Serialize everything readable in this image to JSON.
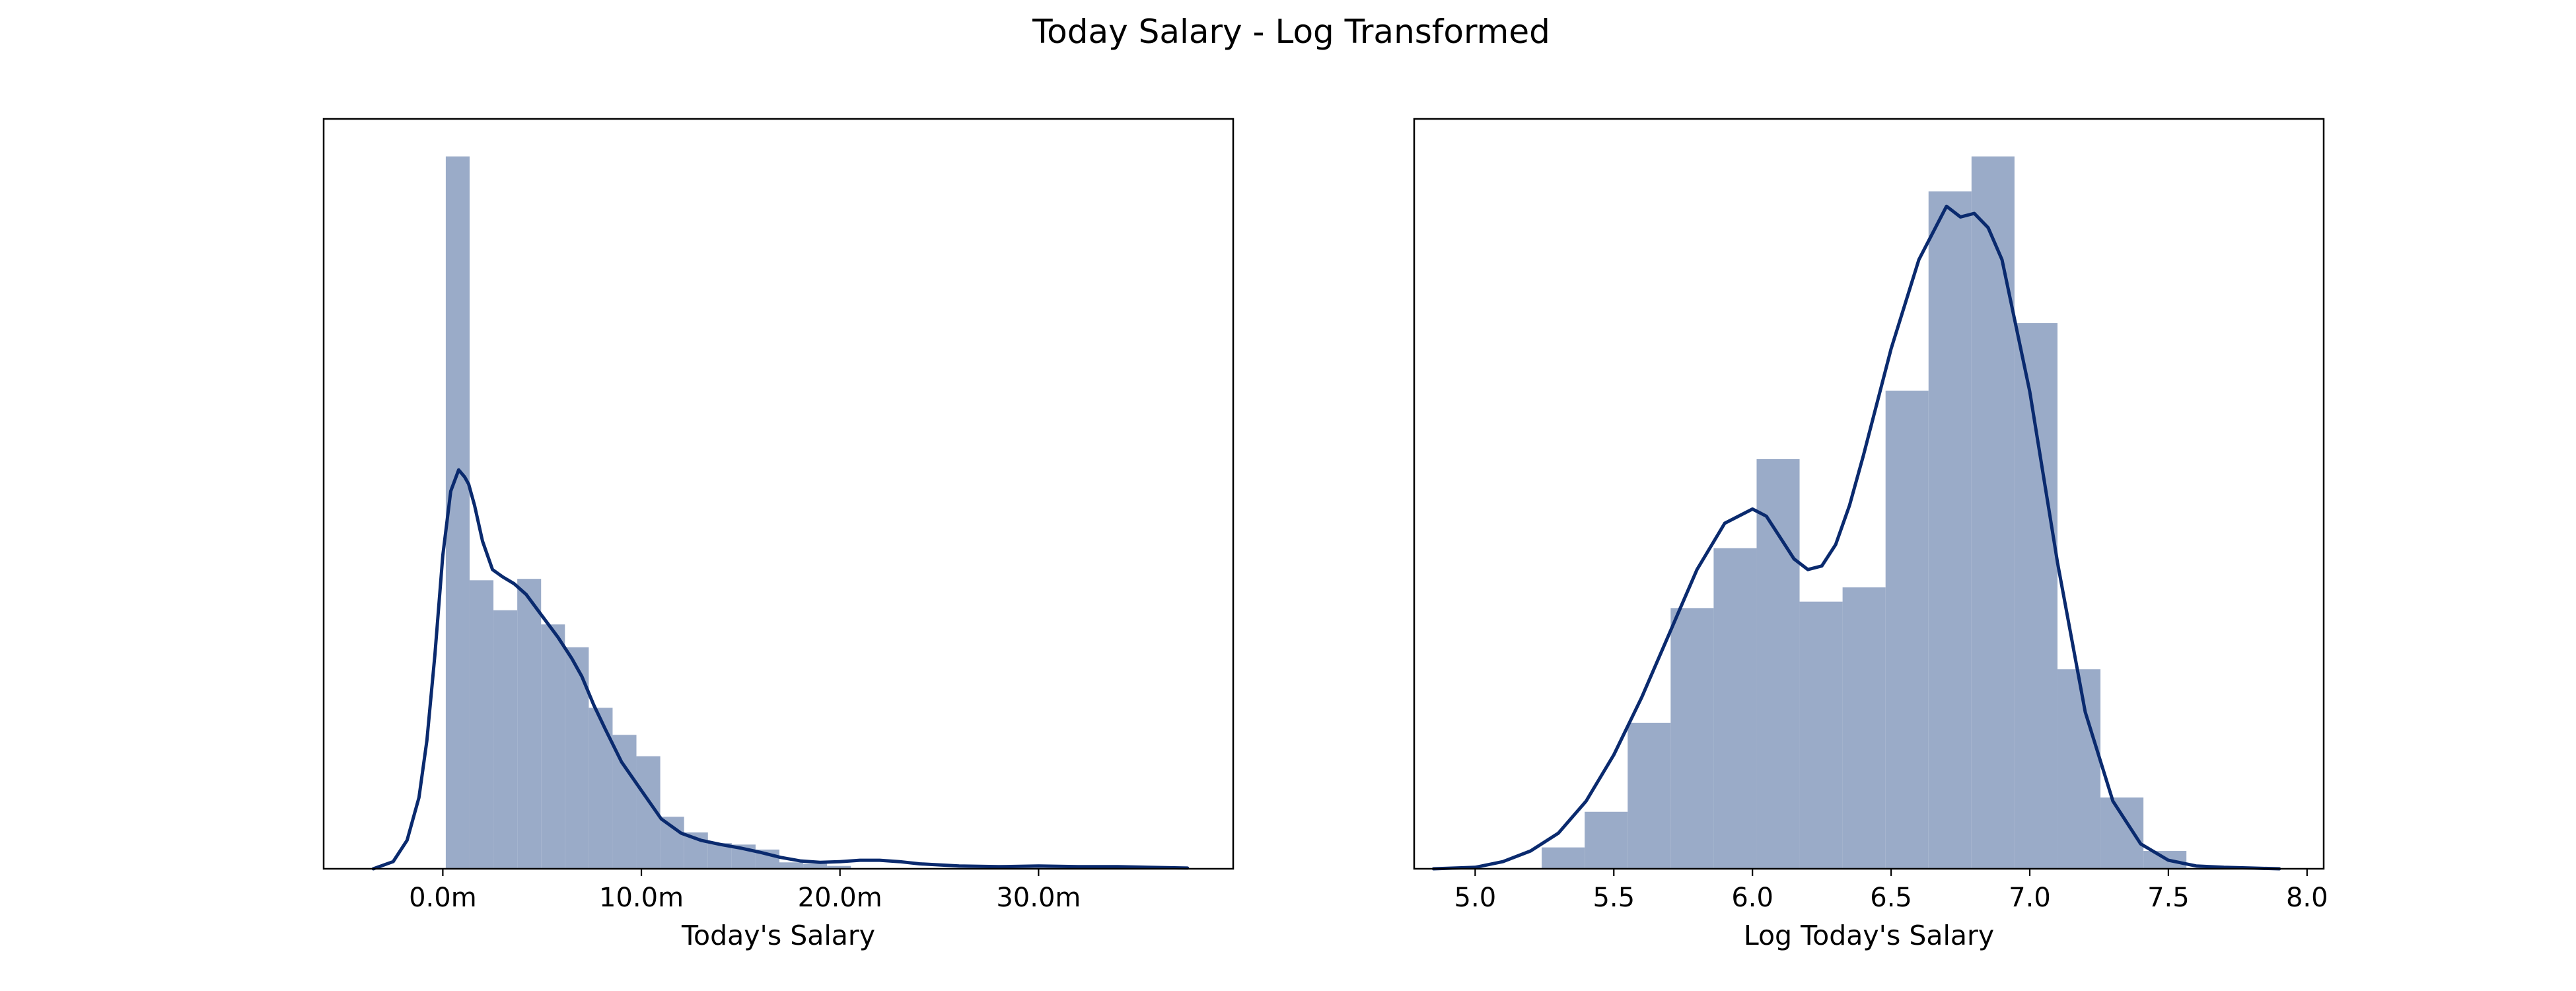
{
  "figure": {
    "title": "Today Salary - Log Transformed"
  },
  "colors": {
    "bar_fill": "#9aabc8",
    "kde_line": "#0a2a6e",
    "axes": "#000000"
  },
  "chart_data": [
    {
      "type": "histogram",
      "title": "",
      "xlabel": "Today's Salary",
      "ylabel": "",
      "xlim": [
        -6.0,
        39.8
      ],
      "ylim": [
        0,
        1.0
      ],
      "y_axis_ticks": "none",
      "grid": false,
      "x_ticks": [
        0,
        10,
        20,
        30
      ],
      "x_tick_labels": [
        "0.0m",
        "10.0m",
        "20.0m",
        "30.0m"
      ],
      "bin_edges": [
        0.15,
        1.35,
        2.55,
        3.75,
        4.95,
        6.15,
        7.35,
        8.55,
        9.75,
        10.95,
        12.15,
        13.35,
        14.55,
        15.75,
        16.95,
        18.15,
        19.35,
        20.55
      ],
      "bin_heights": [
        1.0,
        0.405,
        0.363,
        0.407,
        0.343,
        0.311,
        0.226,
        0.188,
        0.158,
        0.073,
        0.051,
        0.036,
        0.034,
        0.027,
        0.009,
        0.007,
        0.004
      ],
      "kde": {
        "x": [
          -3.5,
          -2.5,
          -1.8,
          -1.2,
          -0.8,
          -0.4,
          0.0,
          0.4,
          0.8,
          1.1,
          1.3,
          1.6,
          2.0,
          2.5,
          3.0,
          3.6,
          4.2,
          5.0,
          5.8,
          6.5,
          7.0,
          7.6,
          8.2,
          9.0,
          10.0,
          11.0,
          12.0,
          13.0,
          14.0,
          15.0,
          16.0,
          17.0,
          18.0,
          19.0,
          20.0,
          21.0,
          22.0,
          23.0,
          24.0,
          26.0,
          28.0,
          30.0,
          32.0,
          34.0,
          35.5,
          37.5
        ],
        "y": [
          0.0,
          0.01,
          0.04,
          0.1,
          0.18,
          0.3,
          0.44,
          0.53,
          0.56,
          0.55,
          0.54,
          0.51,
          0.46,
          0.42,
          0.41,
          0.4,
          0.385,
          0.355,
          0.325,
          0.295,
          0.27,
          0.23,
          0.195,
          0.15,
          0.11,
          0.07,
          0.05,
          0.04,
          0.034,
          0.029,
          0.023,
          0.016,
          0.011,
          0.009,
          0.01,
          0.012,
          0.012,
          0.01,
          0.007,
          0.004,
          0.003,
          0.004,
          0.003,
          0.003,
          0.002,
          0.001
        ]
      }
    },
    {
      "type": "histogram",
      "title": "",
      "xlabel": "Log Today's Salary",
      "ylabel": "",
      "xlim": [
        4.78,
        8.06
      ],
      "ylim": [
        0,
        1.0
      ],
      "y_axis_ticks": "none",
      "grid": false,
      "x_ticks": [
        5.0,
        5.5,
        6.0,
        6.5,
        7.0,
        7.5,
        8.0
      ],
      "x_tick_labels": [
        "5.0",
        "5.5",
        "6.0",
        "6.5",
        "7.0",
        "7.5",
        "8.0"
      ],
      "bin_edges": [
        5.24,
        5.395,
        5.55,
        5.705,
        5.86,
        6.015,
        6.17,
        6.325,
        6.48,
        6.635,
        6.79,
        6.945,
        7.1,
        7.255,
        7.41,
        7.565
      ],
      "bin_heights": [
        0.03,
        0.08,
        0.205,
        0.366,
        0.45,
        0.575,
        0.375,
        0.395,
        0.671,
        0.951,
        1.0,
        0.766,
        0.28,
        0.1,
        0.025
      ],
      "kde": {
        "x": [
          4.85,
          5.0,
          5.1,
          5.2,
          5.3,
          5.4,
          5.5,
          5.6,
          5.7,
          5.8,
          5.9,
          6.0,
          6.05,
          6.1,
          6.15,
          6.2,
          6.25,
          6.3,
          6.35,
          6.4,
          6.5,
          6.6,
          6.7,
          6.75,
          6.8,
          6.85,
          6.9,
          7.0,
          7.1,
          7.2,
          7.3,
          7.4,
          7.5,
          7.6,
          7.7,
          7.8,
          7.9
        ],
        "y": [
          0.0,
          0.002,
          0.01,
          0.025,
          0.05,
          0.095,
          0.16,
          0.24,
          0.33,
          0.42,
          0.485,
          0.505,
          0.495,
          0.465,
          0.435,
          0.42,
          0.425,
          0.455,
          0.51,
          0.58,
          0.73,
          0.855,
          0.93,
          0.915,
          0.92,
          0.9,
          0.855,
          0.67,
          0.43,
          0.22,
          0.095,
          0.035,
          0.012,
          0.004,
          0.002,
          0.001,
          0.0
        ]
      }
    }
  ]
}
